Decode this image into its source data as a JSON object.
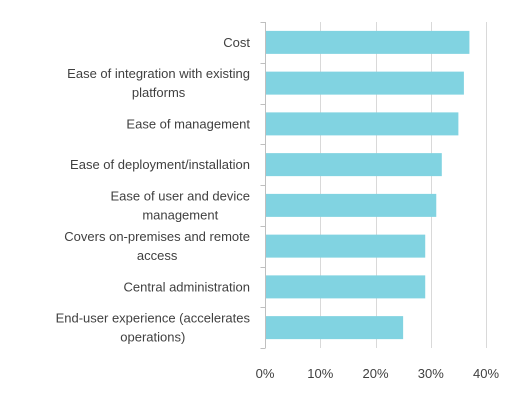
{
  "chart_data": {
    "type": "bar",
    "orientation": "horizontal",
    "categories": [
      "Cost",
      "Ease of integration with existing platforms",
      "Ease of management",
      "Ease of deployment/installation",
      "Ease of user and device management",
      "Covers on-premises and remote access",
      "Central administration",
      "End-user experience (accelerates operations)"
    ],
    "category_lines": [
      [
        "Cost"
      ],
      [
        "Ease of integration with existing",
        "platforms"
      ],
      [
        "Ease of management"
      ],
      [
        "Ease of deployment/installation"
      ],
      [
        "Ease of user and device",
        "management"
      ],
      [
        "Covers on-premises and remote",
        "access"
      ],
      [
        "Central administration"
      ],
      [
        "End-user experience (accelerates",
        "operations)"
      ]
    ],
    "values": [
      0.37,
      0.36,
      0.35,
      0.32,
      0.31,
      0.29,
      0.29,
      0.25
    ],
    "xlim": [
      0,
      0.4
    ],
    "x_ticks": [
      0,
      0.1,
      0.2,
      0.3,
      0.4
    ],
    "x_tick_labels": [
      "0%",
      "10%",
      "20%",
      "30%",
      "40%"
    ],
    "title": "",
    "xlabel": "",
    "ylabel": "",
    "grid": true,
    "legend": "none",
    "bar_color": "#81D3E1",
    "grid_color": "#d9d9d9",
    "text_color": "#404040"
  }
}
